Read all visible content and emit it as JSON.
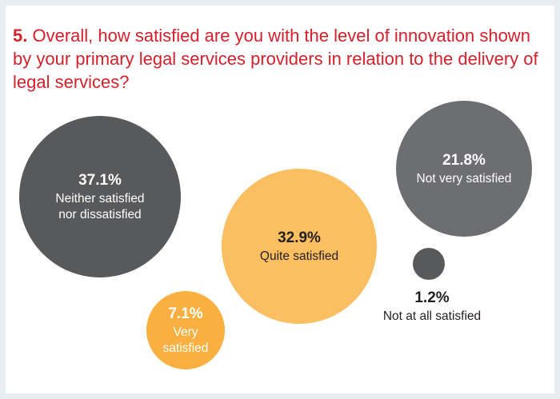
{
  "question": {
    "number": "5.",
    "text": "Overall, how satisfied are you with the level of innovation shown by your primary legal services providers in relation to the delivery of legal services?"
  },
  "colors": {
    "title": "#d6202b",
    "neutral_dark": "#58595b",
    "not_very": "#6d6e71",
    "quite": "#fbbf62",
    "very": "#f9b040",
    "not_at_all": "#58595b"
  },
  "chart_data": {
    "type": "bubble",
    "title": "5. Overall, how satisfied are you with the level of innovation shown by your primary legal services providers in relation to the delivery of legal services?",
    "series": [
      {
        "name": "Neither satisfied nor dissatisfied",
        "value": 37.1,
        "value_label": "37.1%",
        "label_lines": [
          "Neither satisfied",
          "nor dissatisfied"
        ],
        "color": "#58595b",
        "label_inside": true
      },
      {
        "name": "Not very satisfied",
        "value": 21.8,
        "value_label": "21.8%",
        "label_lines": [
          "Not very satisfied"
        ],
        "color": "#6d6e71",
        "label_inside": true
      },
      {
        "name": "Quite satisfied",
        "value": 32.9,
        "value_label": "32.9%",
        "label_lines": [
          "Quite satisfied"
        ],
        "color": "#fbbf62",
        "label_inside": true
      },
      {
        "name": "Very satisfied",
        "value": 7.1,
        "value_label": "7.1%",
        "label_lines": [
          "Very",
          "satisfied"
        ],
        "color": "#f9b040",
        "label_inside": true
      },
      {
        "name": "Not at all satisfied",
        "value": 1.2,
        "value_label": "1.2%",
        "label_lines": [
          "Not at all satisfied"
        ],
        "color": "#58595b",
        "label_inside": false
      }
    ]
  }
}
